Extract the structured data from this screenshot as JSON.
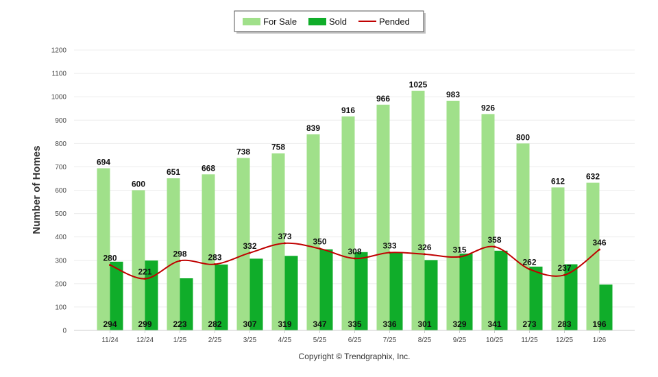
{
  "chart_data": {
    "type": "bar",
    "title": "",
    "xlabel": "",
    "ylabel": "Number of Homes",
    "ylim": [
      0,
      1200
    ],
    "yticks": [
      0,
      100,
      200,
      300,
      400,
      500,
      600,
      700,
      800,
      900,
      1000,
      1100,
      1200
    ],
    "grid": true,
    "legend_position": "top-center",
    "categories": [
      "11/24",
      "12/24",
      "1/25",
      "2/25",
      "3/25",
      "4/25",
      "5/25",
      "6/25",
      "7/25",
      "8/25",
      "9/25",
      "10/25",
      "11/25",
      "12/25",
      "1/26"
    ],
    "series": [
      {
        "name": "For Sale",
        "kind": "bar",
        "color": "#a0e08a",
        "values": [
          694,
          600,
          651,
          668,
          738,
          758,
          839,
          916,
          966,
          1025,
          983,
          926,
          800,
          612,
          632
        ]
      },
      {
        "name": "Sold",
        "kind": "bar",
        "color": "#10ad2a",
        "values": [
          294,
          299,
          223,
          282,
          307,
          319,
          347,
          335,
          336,
          301,
          329,
          341,
          273,
          283,
          196
        ]
      },
      {
        "name": "Pended",
        "kind": "line",
        "color": "#c00000",
        "values": [
          280,
          221,
          298,
          283,
          332,
          373,
          350,
          308,
          333,
          326,
          315,
          358,
          262,
          237,
          346
        ]
      }
    ]
  },
  "footer": {
    "copyright": "Copyright © Trendgraphix, Inc."
  }
}
